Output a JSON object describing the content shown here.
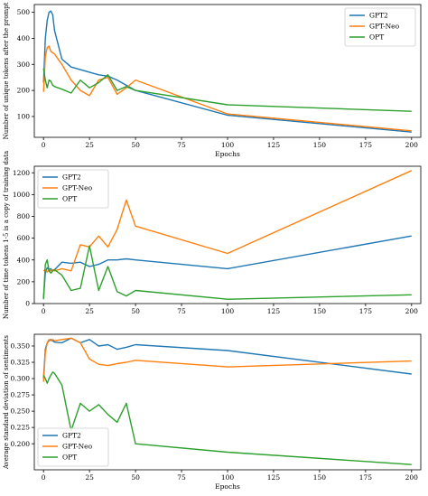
{
  "chart_data": [
    {
      "type": "line",
      "xlabel": "Epochs",
      "ylabel": "Number of unique tokens after the prompt",
      "xlim": [
        -5,
        205
      ],
      "ylim": [
        20,
        530
      ],
      "xticks": [
        0,
        25,
        50,
        75,
        100,
        125,
        150,
        175,
        200
      ],
      "yticks": [
        100,
        200,
        300,
        400,
        500
      ],
      "grid": false,
      "legend": "top-right",
      "series": [
        {
          "name": "GPT2",
          "color": "#1f77b4",
          "x": [
            0,
            1,
            2,
            3,
            4,
            5,
            6,
            10,
            15,
            20,
            25,
            30,
            35,
            40,
            45,
            50,
            100,
            200
          ],
          "y": [
            230,
            400,
            470,
            500,
            505,
            490,
            430,
            320,
            290,
            280,
            270,
            260,
            255,
            240,
            220,
            200,
            105,
            40
          ]
        },
        {
          "name": "GPT-Neo",
          "color": "#ff7f0e",
          "x": [
            0,
            1,
            2,
            3,
            4,
            5,
            6,
            10,
            15,
            20,
            25,
            30,
            35,
            40,
            45,
            50,
            100,
            200
          ],
          "y": [
            195,
            330,
            365,
            370,
            350,
            345,
            340,
            300,
            240,
            200,
            180,
            240,
            250,
            185,
            210,
            240,
            110,
            45
          ]
        },
        {
          "name": "OPT",
          "color": "#2ca02c",
          "x": [
            0,
            1,
            2,
            3,
            4,
            5,
            6,
            10,
            15,
            20,
            25,
            30,
            35,
            40,
            45,
            50,
            100,
            200
          ],
          "y": [
            285,
            240,
            210,
            240,
            235,
            220,
            215,
            205,
            190,
            240,
            210,
            230,
            260,
            200,
            215,
            200,
            145,
            120
          ]
        }
      ]
    },
    {
      "type": "line",
      "xlabel": "",
      "ylabel": "Number of time tokens 1-5 is a copy of training data",
      "xlim": [
        -5,
        205
      ],
      "ylim": [
        0,
        1260
      ],
      "xticks": [
        0,
        25,
        50,
        75,
        100,
        125,
        150,
        175,
        200
      ],
      "yticks": [
        0,
        200,
        400,
        600,
        800,
        1000,
        1200
      ],
      "grid": false,
      "legend": "top-left",
      "series": [
        {
          "name": "GPT2",
          "color": "#1f77b4",
          "x": [
            0,
            1,
            2,
            3,
            4,
            5,
            6,
            10,
            15,
            20,
            25,
            30,
            35,
            40,
            45,
            50,
            100,
            200
          ],
          "y": [
            50,
            280,
            330,
            310,
            320,
            300,
            310,
            380,
            370,
            380,
            340,
            360,
            400,
            400,
            410,
            400,
            320,
            620
          ]
        },
        {
          "name": "GPT-Neo",
          "color": "#ff7f0e",
          "x": [
            0,
            1,
            2,
            3,
            4,
            5,
            6,
            10,
            15,
            20,
            25,
            30,
            35,
            40,
            45,
            50,
            100,
            200
          ],
          "y": [
            300,
            310,
            290,
            310,
            300,
            310,
            300,
            320,
            300,
            540,
            520,
            620,
            520,
            680,
            950,
            710,
            460,
            1220
          ]
        },
        {
          "name": "OPT",
          "color": "#2ca02c",
          "x": [
            0,
            1,
            2,
            3,
            4,
            5,
            6,
            10,
            15,
            20,
            25,
            30,
            35,
            40,
            45,
            50,
            100,
            200
          ],
          "y": [
            40,
            360,
            400,
            300,
            280,
            300,
            310,
            260,
            120,
            140,
            530,
            120,
            340,
            110,
            70,
            120,
            40,
            80
          ]
        }
      ]
    },
    {
      "type": "line",
      "xlabel": "Epochs",
      "ylabel": "Average standard deviation of sentiments",
      "xlim": [
        -5,
        205
      ],
      "ylim": [
        0.16,
        0.368
      ],
      "xticks": [
        0,
        25,
        50,
        75,
        100,
        125,
        150,
        175,
        200
      ],
      "yticks": [
        0.2,
        0.225,
        0.25,
        0.275,
        0.3,
        0.325,
        0.35
      ],
      "ytick_labels": [
        "0.200",
        "0.225",
        "0.250",
        "0.275",
        "0.300",
        "0.325",
        "0.350"
      ],
      "grid": false,
      "legend": "bottom-left",
      "series": [
        {
          "name": "GPT2",
          "color": "#1f77b4",
          "x": [
            0,
            1,
            2,
            3,
            4,
            5,
            6,
            10,
            15,
            20,
            25,
            30,
            35,
            40,
            45,
            50,
            100,
            200
          ],
          "y": [
            0.3,
            0.345,
            0.355,
            0.358,
            0.36,
            0.358,
            0.356,
            0.355,
            0.362,
            0.355,
            0.36,
            0.35,
            0.352,
            0.345,
            0.348,
            0.352,
            0.343,
            0.307
          ]
        },
        {
          "name": "GPT-Neo",
          "color": "#ff7f0e",
          "x": [
            0,
            1,
            2,
            3,
            4,
            5,
            6,
            10,
            15,
            20,
            25,
            30,
            35,
            40,
            45,
            50,
            100,
            200
          ],
          "y": [
            0.295,
            0.34,
            0.355,
            0.36,
            0.358,
            0.36,
            0.358,
            0.36,
            0.362,
            0.355,
            0.33,
            0.322,
            0.32,
            0.323,
            0.325,
            0.328,
            0.318,
            0.327
          ]
        },
        {
          "name": "OPT",
          "color": "#2ca02c",
          "x": [
            0,
            1,
            2,
            3,
            4,
            5,
            6,
            10,
            15,
            20,
            25,
            30,
            35,
            40,
            45,
            50,
            100,
            200
          ],
          "y": [
            0.305,
            0.3,
            0.293,
            0.3,
            0.305,
            0.31,
            0.308,
            0.29,
            0.22,
            0.262,
            0.25,
            0.26,
            0.245,
            0.233,
            0.262,
            0.2,
            0.187,
            0.168
          ]
        }
      ]
    }
  ]
}
